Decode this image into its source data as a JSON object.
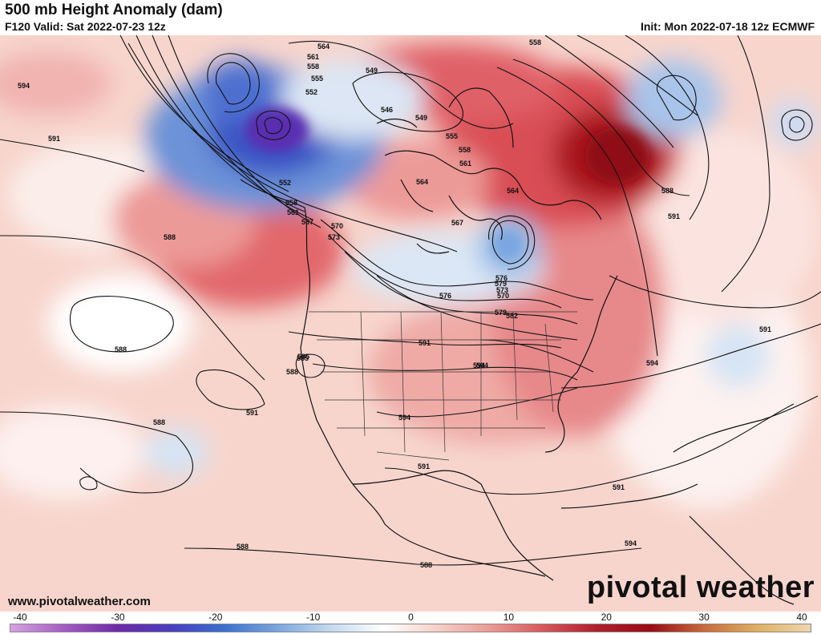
{
  "header": {
    "title": "500 mb Height Anomaly (dam)",
    "valid": "F120 Valid: Sat 2022-07-23 12z",
    "init": "Init: Mon 2022-07-18 12z ECMWF"
  },
  "footer": {
    "website": "www.pivotalweather.com",
    "logo_text": "pivotal weather"
  },
  "colorbar": {
    "tick_labels": [
      "-40",
      "-30",
      "-20",
      "-10",
      "0",
      "10",
      "20",
      "30",
      "40"
    ],
    "range": [
      -40,
      40
    ],
    "colors": [
      "#d7a1e0",
      "#a55bc4",
      "#6f2aa8",
      "#4a3dc0",
      "#3b6fd0",
      "#7aa6e0",
      "#c4daf0",
      "#ffffff",
      "#f6cfc8",
      "#ec9a94",
      "#d9565a",
      "#b01e2a",
      "#9b0b14",
      "#c96a3a",
      "#e0b060",
      "#f0d6b0"
    ]
  },
  "map": {
    "region": "North America",
    "contour_labels": [
      "564",
      "558",
      "561",
      "558",
      "555",
      "552",
      "549",
      "546",
      "549",
      "552",
      "555",
      "558",
      "561",
      "564",
      "567",
      "570",
      "573",
      "576",
      "579",
      "582",
      "585",
      "588",
      "591",
      "594",
      "558",
      "561",
      "564",
      "567",
      "570",
      "573",
      "576",
      "579",
      "588",
      "591",
      "594",
      "594",
      "591",
      "588",
      "591",
      "585",
      "588",
      "591",
      "594",
      "591",
      "594",
      "588",
      "588",
      "588",
      "594",
      "591"
    ]
  }
}
